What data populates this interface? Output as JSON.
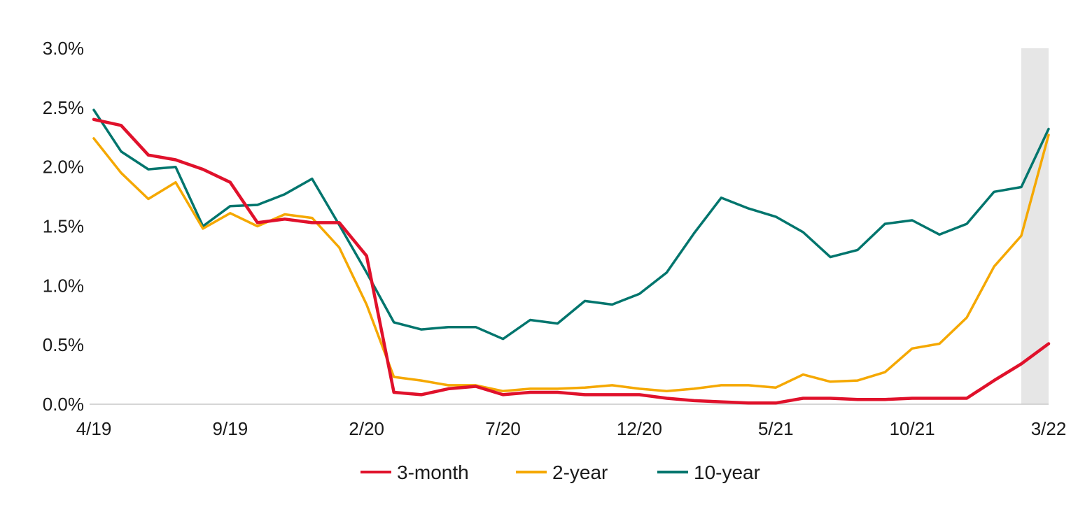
{
  "chart_data": {
    "type": "line",
    "title": "",
    "xlabel": "",
    "ylabel": "",
    "ylim": [
      0,
      3.0
    ],
    "grid": false,
    "legend_position": "bottom",
    "x": [
      "4/19",
      "5/19",
      "6/19",
      "7/19",
      "8/19",
      "9/19",
      "10/19",
      "11/19",
      "12/19",
      "1/20",
      "2/20",
      "3/20",
      "4/20",
      "5/20",
      "6/20",
      "7/20",
      "8/20",
      "9/20",
      "10/20",
      "11/20",
      "12/20",
      "1/21",
      "2/21",
      "3/21",
      "4/21",
      "5/21",
      "6/21",
      "7/21",
      "8/21",
      "9/21",
      "10/21",
      "11/21",
      "12/21",
      "1/22",
      "2/22",
      "3/22"
    ],
    "x_tick_labels": [
      "4/19",
      "9/19",
      "2/20",
      "7/20",
      "12/20",
      "5/21",
      "10/21",
      "3/22"
    ],
    "y_tick_labels": [
      "3.0%",
      "2.5%",
      "2.0%",
      "1.5%",
      "1.0%",
      "0.5%",
      "0.0%"
    ],
    "y_ticks": [
      3.0,
      2.5,
      2.0,
      1.5,
      1.0,
      0.5,
      0.0
    ],
    "shaded_region": {
      "from": "2/22",
      "to": "3/22",
      "color": "#e6e6e6"
    },
    "series": [
      {
        "name": "3-month",
        "color": "#e0112b",
        "values": [
          2.4,
          2.35,
          2.1,
          2.06,
          1.98,
          1.87,
          1.53,
          1.56,
          1.53,
          1.53,
          1.25,
          0.1,
          0.08,
          0.13,
          0.15,
          0.08,
          0.1,
          0.1,
          0.08,
          0.08,
          0.08,
          0.05,
          0.03,
          0.02,
          0.01,
          0.01,
          0.05,
          0.05,
          0.04,
          0.04,
          0.05,
          0.05,
          0.05,
          0.2,
          0.34,
          0.51
        ]
      },
      {
        "name": "2-year",
        "color": "#f5a800",
        "values": [
          2.24,
          1.95,
          1.73,
          1.87,
          1.48,
          1.61,
          1.5,
          1.6,
          1.57,
          1.32,
          0.84,
          0.23,
          0.2,
          0.16,
          0.16,
          0.11,
          0.13,
          0.13,
          0.14,
          0.16,
          0.13,
          0.11,
          0.13,
          0.16,
          0.16,
          0.14,
          0.25,
          0.19,
          0.2,
          0.27,
          0.47,
          0.51,
          0.73,
          1.16,
          1.42,
          2.27
        ]
      },
      {
        "name": "10-year",
        "color": "#00756d",
        "values": [
          2.48,
          2.13,
          1.98,
          2.0,
          1.5,
          1.67,
          1.68,
          1.77,
          1.9,
          1.51,
          1.11,
          0.69,
          0.63,
          0.65,
          0.65,
          0.55,
          0.71,
          0.68,
          0.87,
          0.84,
          0.93,
          1.11,
          1.44,
          1.74,
          1.65,
          1.58,
          1.45,
          1.24,
          1.3,
          1.52,
          1.55,
          1.43,
          1.52,
          1.79,
          1.83,
          2.32
        ]
      }
    ]
  }
}
